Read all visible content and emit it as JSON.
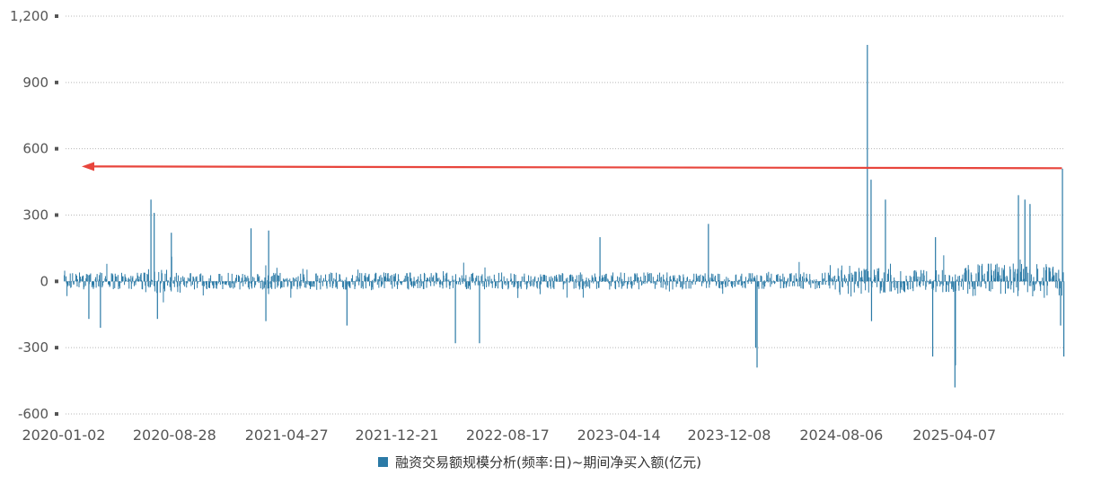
{
  "chart_data": {
    "type": "bar",
    "title": "",
    "xlabel": "",
    "ylabel": "",
    "ylim": [
      -600,
      1200
    ],
    "y_ticks": [
      {
        "value": -600,
        "label": "-600"
      },
      {
        "value": -300,
        "label": "-300"
      },
      {
        "value": 0,
        "label": "0"
      },
      {
        "value": 300,
        "label": "300"
      },
      {
        "value": 600,
        "label": "600"
      },
      {
        "value": 900,
        "label": "900"
      },
      {
        "value": 1200,
        "label": "1,200"
      }
    ],
    "x_ticks": [
      "2020-01-02",
      "2020-08-28",
      "2021-04-27",
      "2021-12-21",
      "2022-08-17",
      "2023-04-14",
      "2023-12-08",
      "2024-08-06",
      "2025-04-07"
    ],
    "x_range": [
      "2020-01-02",
      "2025-11-28"
    ],
    "grid": true,
    "legend_position": "bottom-center",
    "series": [
      {
        "name": "融资交易额规模分析(频率:日)~期间净买入额(亿元)",
        "color": "#2b7aa6",
        "notable_values": [
          {
            "x": "2020-02-24",
            "y": -170
          },
          {
            "x": "2020-03-20",
            "y": -210
          },
          {
            "x": "2020-07-07",
            "y": 370
          },
          {
            "x": "2020-07-14",
            "y": 310
          },
          {
            "x": "2020-07-21",
            "y": -170
          },
          {
            "x": "2020-08-20",
            "y": 220
          },
          {
            "x": "2021-02-08",
            "y": 240
          },
          {
            "x": "2021-03-12",
            "y": -180
          },
          {
            "x": "2021-03-18",
            "y": 230
          },
          {
            "x": "2021-09-03",
            "y": -200
          },
          {
            "x": "2022-04-25",
            "y": -280
          },
          {
            "x": "2022-06-16",
            "y": -280
          },
          {
            "x": "2023-03-03",
            "y": 200
          },
          {
            "x": "2023-10-23",
            "y": 260
          },
          {
            "x": "2024-02-02",
            "y": -300
          },
          {
            "x": "2024-02-05",
            "y": -390
          },
          {
            "x": "2024-09-30",
            "y": 1070
          },
          {
            "x": "2024-10-08",
            "y": 460
          },
          {
            "x": "2024-10-09",
            "y": -180
          },
          {
            "x": "2024-11-08",
            "y": 370
          },
          {
            "x": "2025-02-18",
            "y": -340
          },
          {
            "x": "2025-02-24",
            "y": 200
          },
          {
            "x": "2025-04-07",
            "y": -480
          },
          {
            "x": "2025-04-08",
            "y": -380
          },
          {
            "x": "2025-08-22",
            "y": 390
          },
          {
            "x": "2025-09-05",
            "y": 370
          },
          {
            "x": "2025-09-16",
            "y": 350
          },
          {
            "x": "2025-11-21",
            "y": -200
          },
          {
            "x": "2025-11-25",
            "y": 510
          },
          {
            "x": "2025-11-28",
            "y": -340
          }
        ]
      }
    ],
    "annotations": [
      {
        "type": "arrow",
        "color": "#e8453c",
        "from": {
          "x": "2025-11-25",
          "y": 512
        },
        "to": {
          "x": "2020-01-02",
          "y": 520
        }
      }
    ]
  }
}
